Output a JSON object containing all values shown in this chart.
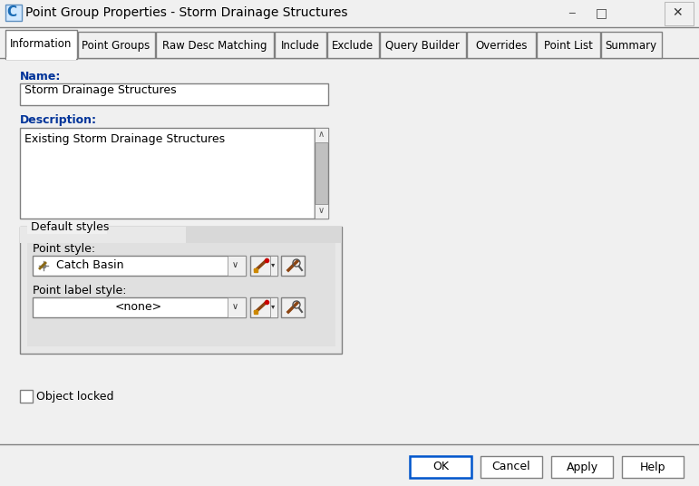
{
  "title": "Point Group Properties - Storm Drainage Structures",
  "bg_color": "#f0f0f0",
  "content_bg": "#f0f0f0",
  "white": "#ffffff",
  "dark_border": "#808080",
  "mid_border": "#a0a0a0",
  "light_border": "#c0c0c0",
  "blue_border": "#0055cc",
  "blue_text": "#003399",
  "tabs": [
    "Information",
    "Point Groups",
    "Raw Desc Matching",
    "Include",
    "Exclude",
    "Query Builder",
    "Overrides",
    "Point List",
    "Summary"
  ],
  "active_tab": "Information",
  "tab_widths": [
    79,
    85,
    130,
    57,
    57,
    95,
    76,
    70,
    67
  ],
  "name_label": "Name:",
  "name_value": "Storm Drainage Structures",
  "desc_label": "Description:",
  "desc_value": "Existing Storm Drainage Structures",
  "default_styles_label": "Default styles",
  "point_style_label": "Point style:",
  "point_style_value": "Catch Basin",
  "point_label_style_label": "Point label style:",
  "point_label_style_value": "<none>",
  "object_locked_label": "Object locked",
  "btn_ok": "OK",
  "btn_cancel": "Cancel",
  "btn_apply": "Apply",
  "btn_help": "Help",
  "titlebar_bg": "#f0f0f0",
  "bottom_bar_bg": "#f0f0f0",
  "groupbox_bg": "#e8e8e8",
  "inner_group_bg": "#e0e0e0"
}
